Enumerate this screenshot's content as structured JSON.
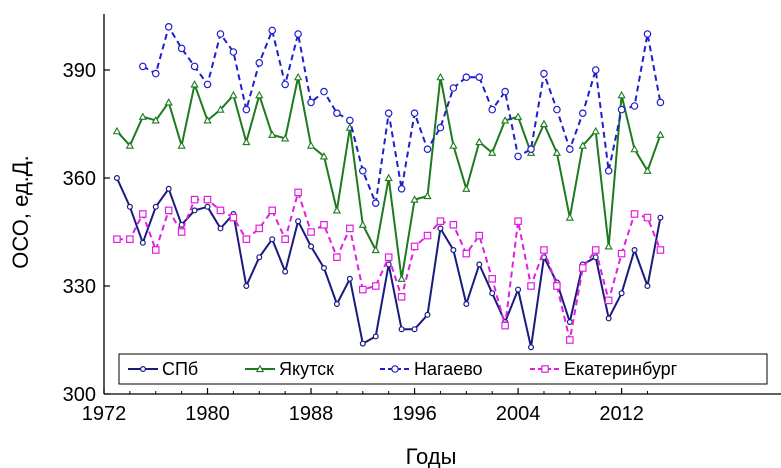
{
  "chart_data": {
    "type": "line",
    "xlabel": "Годы",
    "ylabel": "ОСО, ед.Д.",
    "xlim": [
      1972,
      2015
    ],
    "ylim": [
      300,
      405
    ],
    "xticks": [
      1972,
      1980,
      1988,
      1996,
      2004,
      2012
    ],
    "yticks": [
      300,
      330,
      360,
      390
    ],
    "grid": false,
    "legend_position": "bottom",
    "series": [
      {
        "name": "СПб",
        "color": "#1a1a80",
        "line": "solid",
        "marker": "circle",
        "x": [
          1973,
          1974,
          1975,
          1976,
          1977,
          1978,
          1979,
          1980,
          1981,
          1982,
          1983,
          1984,
          1985,
          1986,
          1987,
          1988,
          1989,
          1990,
          1991,
          1992,
          1993,
          1994,
          1995,
          1996,
          1997,
          1998,
          1999,
          2000,
          2001,
          2002,
          2003,
          2004,
          2005,
          2006,
          2007,
          2008,
          2009,
          2010,
          2011,
          2012,
          2013,
          2014,
          2015
        ],
        "y": [
          360,
          352,
          342,
          352,
          357,
          347,
          351,
          352,
          346,
          350,
          330,
          338,
          343,
          334,
          348,
          341,
          335,
          325,
          332,
          314,
          316,
          336,
          318,
          318,
          322,
          346,
          340,
          325,
          336,
          328,
          320,
          329,
          313,
          338,
          331,
          320,
          336,
          338,
          321,
          328,
          340,
          330,
          349
        ]
      },
      {
        "name": "Якутск",
        "color": "#1e7a1e",
        "line": "solid",
        "marker": "triangle",
        "x": [
          1973,
          1974,
          1975,
          1976,
          1977,
          1978,
          1979,
          1980,
          1981,
          1982,
          1983,
          1984,
          1985,
          1986,
          1987,
          1988,
          1989,
          1990,
          1991,
          1992,
          1993,
          1994,
          1995,
          1996,
          1997,
          1998,
          1999,
          2000,
          2001,
          2002,
          2003,
          2004,
          2005,
          2006,
          2007,
          2008,
          2009,
          2010,
          2011,
          2012,
          2013,
          2014,
          2015
        ],
        "y": [
          373,
          369,
          377,
          376,
          381,
          369,
          386,
          376,
          379,
          383,
          370,
          383,
          372,
          371,
          388,
          369,
          366,
          351,
          374,
          347,
          340,
          360,
          332,
          354,
          355,
          388,
          369,
          357,
          370,
          367,
          376,
          377,
          367,
          375,
          367,
          349,
          369,
          373,
          341,
          383,
          368,
          362,
          372
        ]
      },
      {
        "name": "Нагаево",
        "color": "#1f1fcc",
        "line": "dashed",
        "marker": "circle-open",
        "x": [
          1975,
          1976,
          1977,
          1978,
          1979,
          1980,
          1981,
          1982,
          1983,
          1984,
          1985,
          1986,
          1987,
          1988,
          1989,
          1990,
          1991,
          1992,
          1993,
          1994,
          1995,
          1996,
          1997,
          1998,
          1999,
          2000,
          2001,
          2002,
          2003,
          2004,
          2005,
          2006,
          2007,
          2008,
          2009,
          2010,
          2011,
          2012,
          2013,
          2014,
          2015
        ],
        "y": [
          391,
          389,
          402,
          396,
          391,
          386,
          400,
          395,
          379,
          392,
          401,
          386,
          400,
          381,
          384,
          378,
          376,
          362,
          353,
          378,
          357,
          378,
          368,
          374,
          385,
          388,
          388,
          379,
          384,
          366,
          368,
          389,
          379,
          368,
          378,
          390,
          362,
          379,
          380,
          400,
          381
        ]
      },
      {
        "name": "Екатеринбург",
        "color": "#e020e0",
        "line": "dashed",
        "marker": "square-open",
        "x": [
          1973,
          1974,
          1975,
          1976,
          1977,
          1978,
          1979,
          1980,
          1981,
          1982,
          1983,
          1984,
          1985,
          1986,
          1987,
          1988,
          1989,
          1990,
          1991,
          1992,
          1993,
          1994,
          1995,
          1996,
          1997,
          1998,
          1999,
          2000,
          2001,
          2002,
          2003,
          2004,
          2005,
          2006,
          2007,
          2008,
          2009,
          2010,
          2011,
          2012,
          2013,
          2014,
          2015
        ],
        "y": [
          343,
          343,
          350,
          340,
          351,
          345,
          354,
          354,
          351,
          349,
          343,
          346,
          351,
          343,
          356,
          345,
          347,
          338,
          346,
          329,
          330,
          338,
          327,
          341,
          344,
          348,
          347,
          339,
          344,
          332,
          319,
          348,
          330,
          340,
          330,
          315,
          335,
          340,
          326,
          339,
          350,
          349,
          340
        ]
      }
    ]
  }
}
